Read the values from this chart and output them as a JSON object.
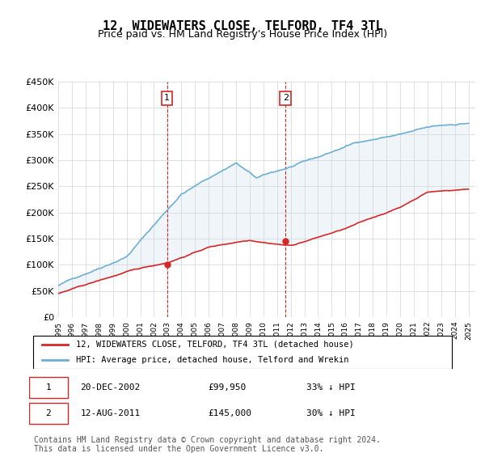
{
  "title": "12, WIDEWATERS CLOSE, TELFORD, TF4 3TL",
  "subtitle": "Price paid vs. HM Land Registry's House Price Index (HPI)",
  "ylim": [
    0,
    450000
  ],
  "yticks": [
    0,
    50000,
    100000,
    150000,
    200000,
    250000,
    300000,
    350000,
    400000,
    450000
  ],
  "ytick_labels": [
    "£0",
    "£50K",
    "£100K",
    "£150K",
    "£200K",
    "£250K",
    "£300K",
    "£350K",
    "£400K",
    "£450K"
  ],
  "hpi_color": "#6baed6",
  "price_color": "#d62728",
  "vline_color": "#d62728",
  "vline_style": "--",
  "annotation_box_color": "#d62728",
  "annotation_bg": "white",
  "shade_color": "#c6dbef",
  "legend_price_label": "12, WIDEWATERS CLOSE, TELFORD, TF4 3TL (detached house)",
  "legend_hpi_label": "HPI: Average price, detached house, Telford and Wrekin",
  "transaction1_label": "1",
  "transaction1_date": "20-DEC-2002",
  "transaction1_price": "£99,950",
  "transaction1_pct": "33% ↓ HPI",
  "transaction2_label": "2",
  "transaction2_date": "12-AUG-2011",
  "transaction2_price": "£145,000",
  "transaction2_pct": "30% ↓ HPI",
  "footer": "Contains HM Land Registry data © Crown copyright and database right 2024.\nThis data is licensed under the Open Government Licence v3.0.",
  "title_fontsize": 11,
  "subtitle_fontsize": 9,
  "axis_fontsize": 8,
  "legend_fontsize": 8,
  "footer_fontsize": 7
}
